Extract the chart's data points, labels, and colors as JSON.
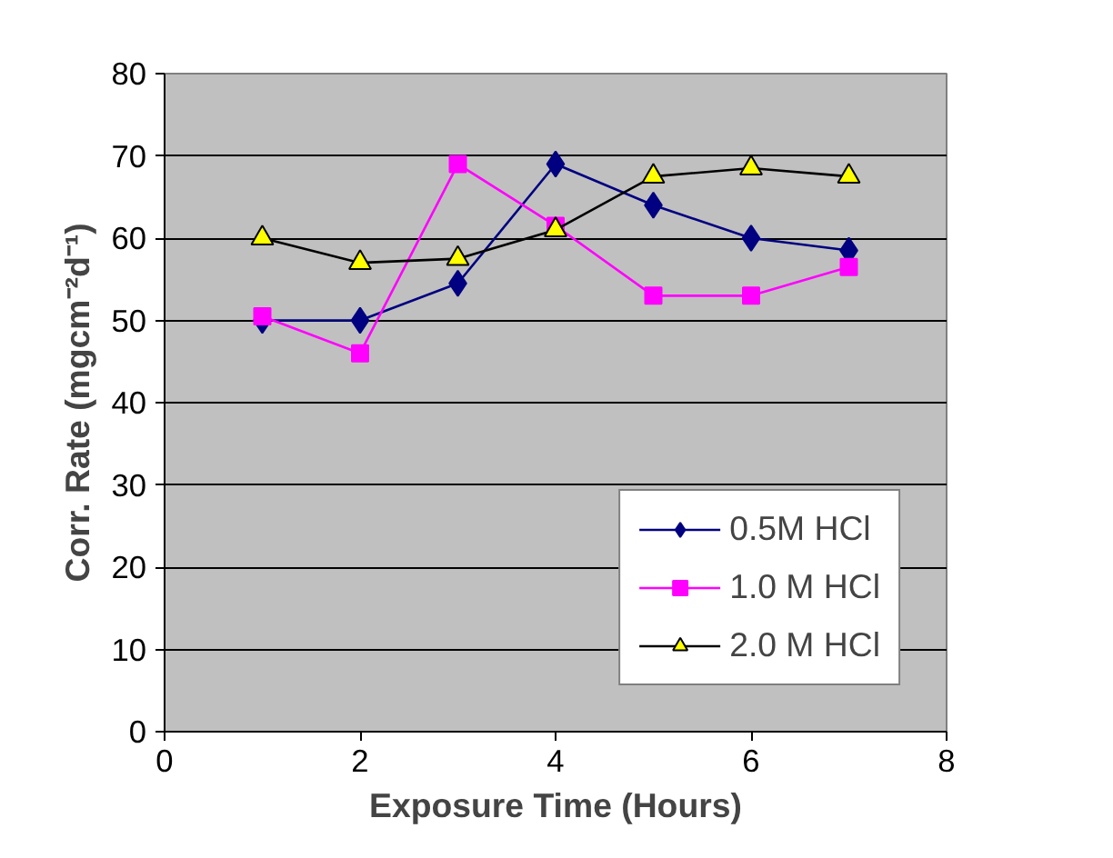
{
  "chart_data": {
    "type": "line",
    "xlabel": "Exposure Time (Hours)",
    "ylabel": "Corr. Rate (mgcm⁻²d⁻¹)",
    "xlim": [
      0,
      8
    ],
    "xticks": [
      0,
      2,
      4,
      6,
      8
    ],
    "ylim": [
      0,
      80
    ],
    "yticks": [
      0,
      10,
      20,
      30,
      40,
      50,
      60,
      70,
      80
    ],
    "grid": "y",
    "legend": "bottom right",
    "series": [
      {
        "name": "0.5M HCl",
        "color": "#000080",
        "marker": "diamond",
        "x": [
          1,
          2,
          3,
          4,
          5,
          6,
          7
        ],
        "values": [
          50,
          50,
          54.5,
          69,
          64,
          60,
          58.5
        ]
      },
      {
        "name": "1.0 M HCl",
        "color": "#ff00ff",
        "marker": "square",
        "x": [
          1,
          2,
          3,
          4,
          5,
          6,
          7
        ],
        "values": [
          50.5,
          46,
          69,
          61.5,
          53,
          53,
          56.5
        ]
      },
      {
        "name": "2.0 M HCl",
        "color": "#000000",
        "marker": "triangle",
        "x": [
          1,
          2,
          3,
          4,
          5,
          6,
          7
        ],
        "values": [
          60,
          57,
          57.5,
          61,
          67.5,
          68.5,
          67.5
        ]
      }
    ]
  }
}
